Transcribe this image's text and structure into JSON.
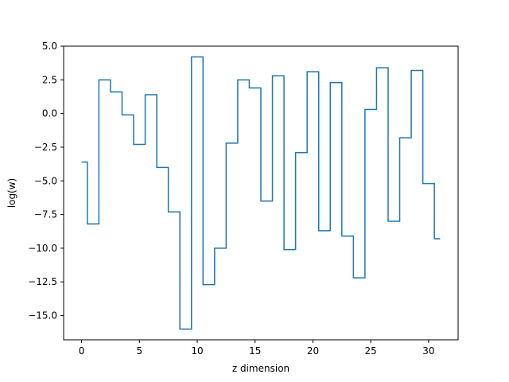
{
  "chart_data": {
    "type": "line",
    "style": "step-mid",
    "xlabel": "z dimension",
    "ylabel": "log(w)",
    "xlim": [
      -1.55,
      32.55
    ],
    "ylim": [
      -16.8,
      5.0
    ],
    "x_ticks": [
      0,
      5,
      10,
      15,
      20,
      25,
      30
    ],
    "x_tick_labels": [
      "0",
      "5",
      "10",
      "15",
      "20",
      "25",
      "30"
    ],
    "y_ticks": [
      5.0,
      2.5,
      0.0,
      -2.5,
      -5.0,
      -7.5,
      -10.0,
      -12.5,
      -15.0
    ],
    "y_tick_labels": [
      "5.0",
      "2.5",
      "0.0",
      "−2.5",
      "−5.0",
      "−7.5",
      "−10.0",
      "−12.5",
      "−15.0"
    ],
    "grid": false,
    "colors": {
      "line": "#1f77b4",
      "axes": "#000000",
      "background": "#ffffff"
    },
    "series": [
      {
        "x": [
          0,
          1,
          2,
          3,
          4,
          5,
          6,
          7,
          8,
          9,
          10,
          11,
          12,
          13,
          14,
          15,
          16,
          17,
          18,
          19,
          20,
          21,
          22,
          23,
          24,
          25,
          26,
          27,
          28,
          29,
          30,
          31
        ],
        "values": [
          -3.6,
          -8.2,
          2.5,
          1.6,
          -0.1,
          -2.3,
          1.4,
          -4.0,
          -7.3,
          -16.0,
          4.2,
          -12.7,
          -10.0,
          -2.2,
          2.5,
          1.9,
          -6.5,
          2.8,
          -10.1,
          -2.9,
          3.1,
          -8.7,
          2.3,
          -9.1,
          -12.2,
          0.3,
          3.4,
          -8.0,
          -1.8,
          3.2,
          -5.2,
          -9.3
        ]
      }
    ]
  }
}
